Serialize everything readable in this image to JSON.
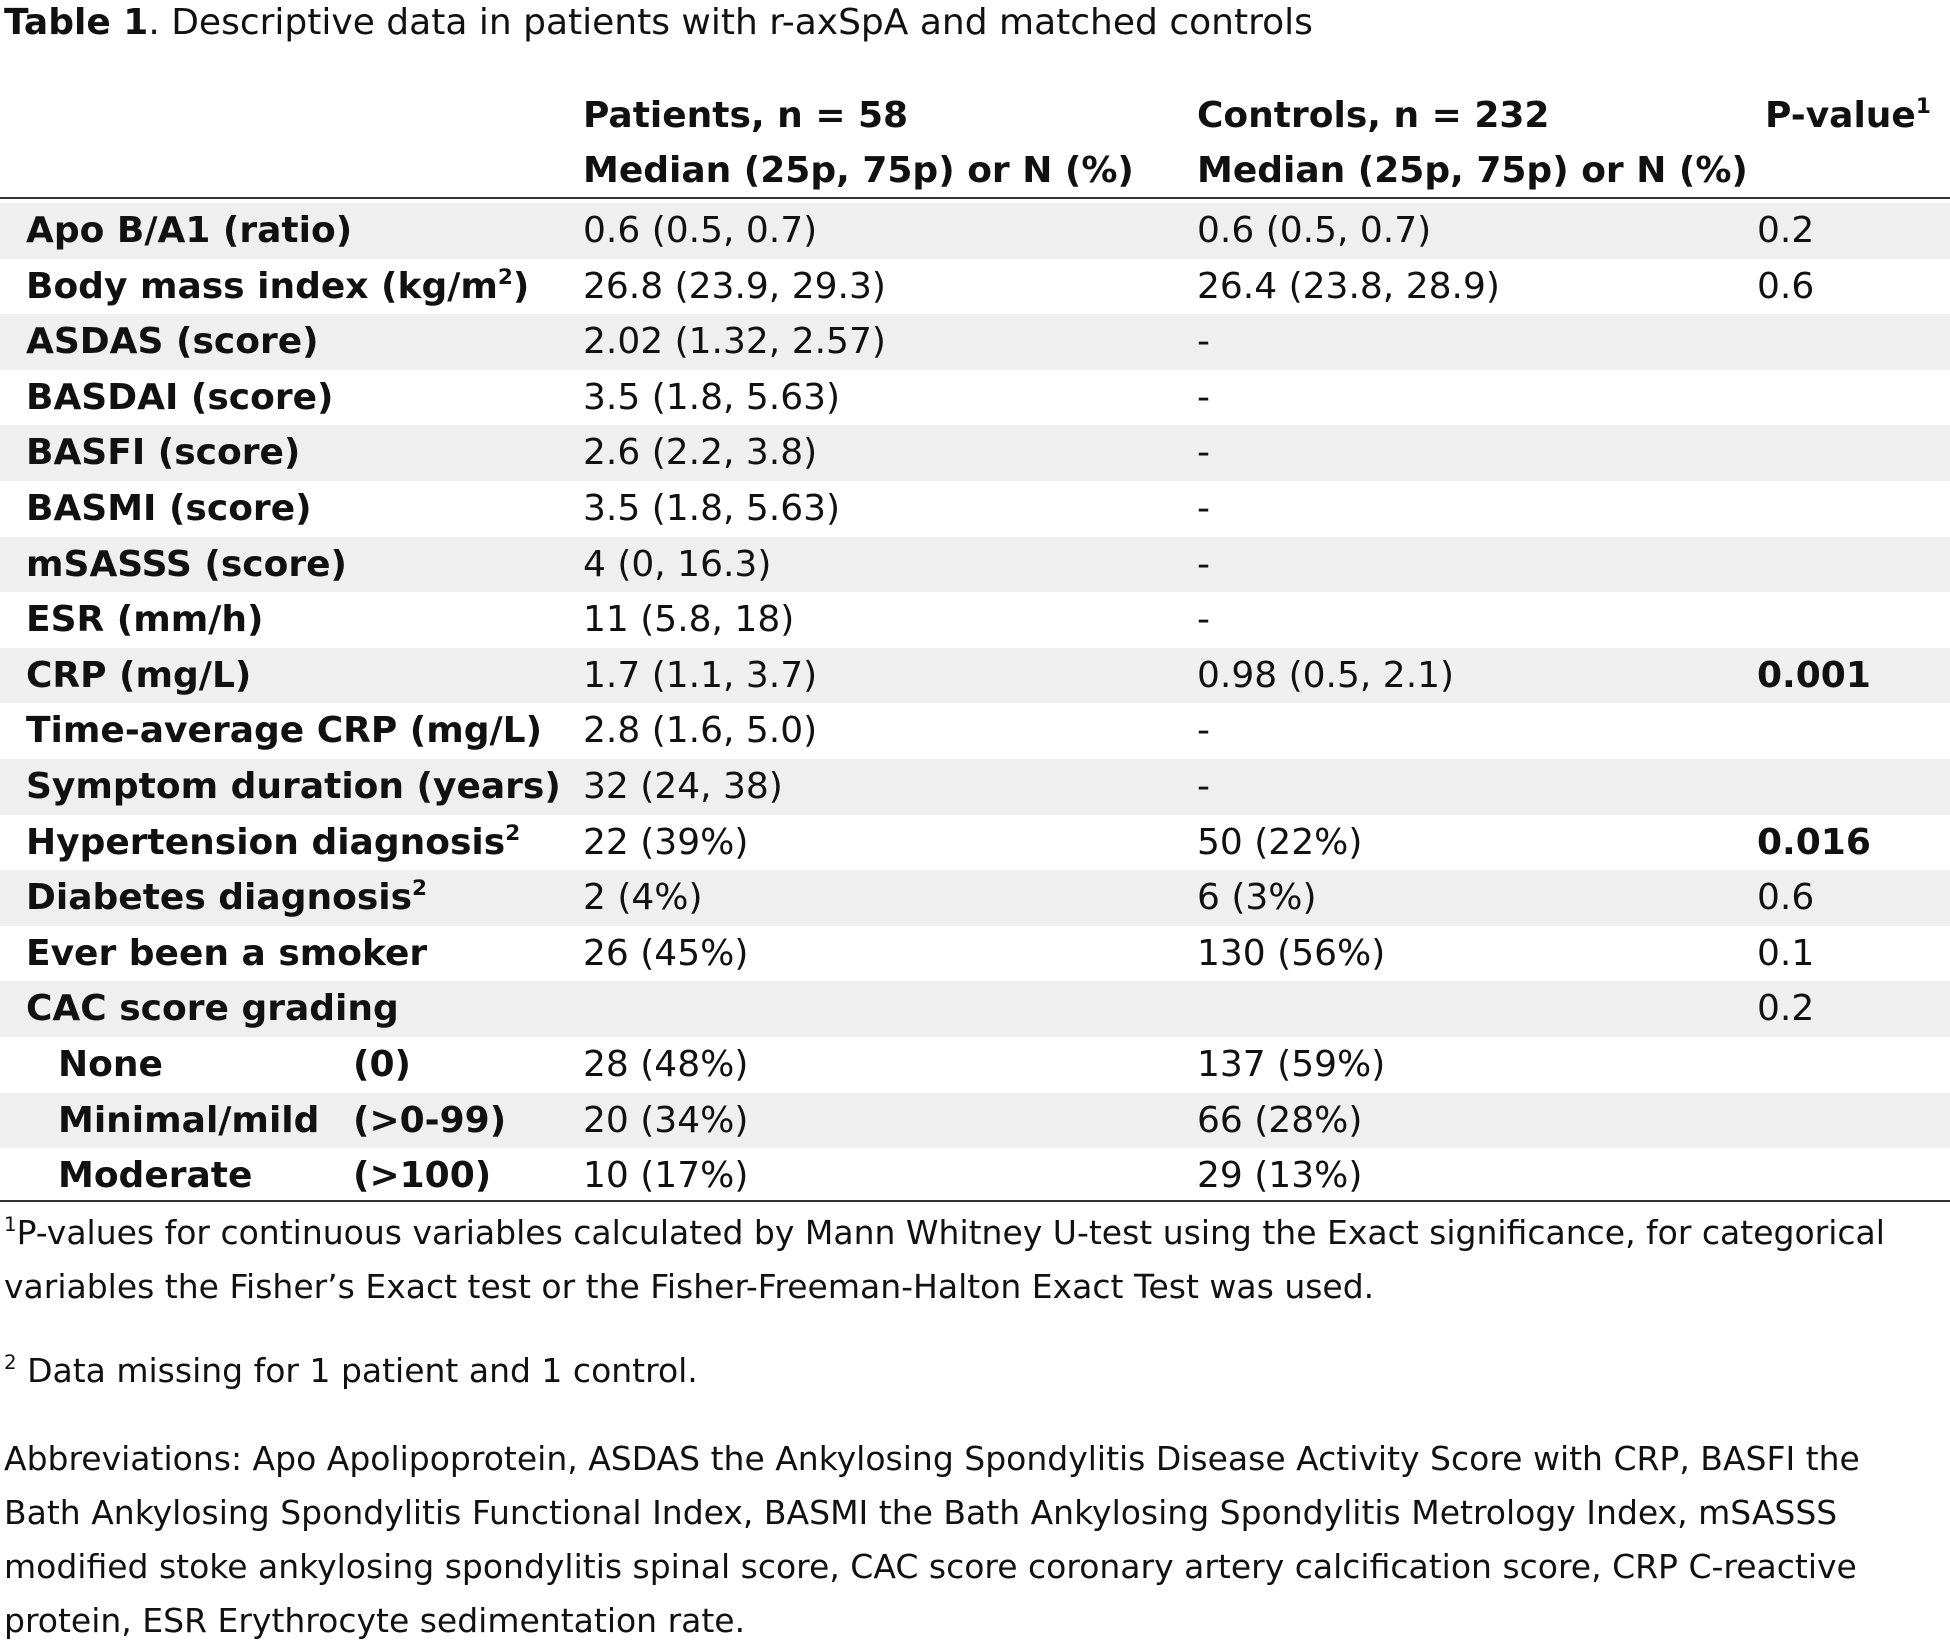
{
  "caption": {
    "label": "Table 1",
    "text": ". Descriptive data in patients with r-axSpA and matched controls"
  },
  "headers": {
    "patients_line1": "Patients, n = 58",
    "patients_line2": "Median (25p, 75p) or N (%)",
    "controls_line1": "Controls, n = 232",
    "controls_line2": "Median (25p, 75p) or N (%)",
    "pvalue": "P-value",
    "pvalue_sup": "1"
  },
  "rows": [
    {
      "label": "Apo B/A1 (ratio)",
      "sup": "",
      "paren": "",
      "patients": "0.6 (0.5, 0.7)",
      "controls": "0.6 (0.5, 0.7)",
      "pvalue": "0.2",
      "bold_p": false,
      "indent": false,
      "shade": true
    },
    {
      "label": "Body mass index (kg/m",
      "sup": "2",
      "after_sup": ")",
      "paren": "",
      "patients": "26.8 (23.9, 29.3)",
      "controls": "26.4 (23.8, 28.9)",
      "pvalue": "0.6",
      "bold_p": false,
      "indent": false,
      "shade": false
    },
    {
      "label": "ASDAS (score)",
      "sup": "",
      "paren": "",
      "patients": "2.02 (1.32, 2.57)",
      "controls": "-",
      "pvalue": "",
      "bold_p": false,
      "indent": false,
      "shade": true
    },
    {
      "label": "BASDAI (score)",
      "sup": "",
      "paren": "",
      "patients": "3.5 (1.8, 5.63)",
      "controls": "-",
      "pvalue": "",
      "bold_p": false,
      "indent": false,
      "shade": false
    },
    {
      "label": "BASFI (score)",
      "sup": "",
      "paren": "",
      "patients": "2.6 (2.2, 3.8)",
      "controls": "-",
      "pvalue": "",
      "bold_p": false,
      "indent": false,
      "shade": true
    },
    {
      "label": "BASMI (score)",
      "sup": "",
      "paren": "",
      "patients": "3.5 (1.8, 5.63)",
      "controls": "-",
      "pvalue": "",
      "bold_p": false,
      "indent": false,
      "shade": false
    },
    {
      "label": "mSASSS (score)",
      "sup": "",
      "paren": "",
      "patients": "4 (0, 16.3)",
      "controls": "-",
      "pvalue": "",
      "bold_p": false,
      "indent": false,
      "shade": true
    },
    {
      "label": "ESR (mm/h)",
      "sup": "",
      "paren": "",
      "patients": "11 (5.8, 18)",
      "controls": "-",
      "pvalue": "",
      "bold_p": false,
      "indent": false,
      "shade": false
    },
    {
      "label": "CRP (mg/L)",
      "sup": "",
      "paren": "",
      "patients": "1.7 (1.1, 3.7)",
      "controls": "0.98 (0.5, 2.1)",
      "pvalue": "0.001",
      "bold_p": true,
      "indent": false,
      "shade": true
    },
    {
      "label": "Time-average CRP (mg/L)",
      "sup": "",
      "paren": "",
      "patients": "2.8 (1.6, 5.0)",
      "controls": "-",
      "pvalue": "",
      "bold_p": false,
      "indent": false,
      "shade": false
    },
    {
      "label": "Symptom duration (years)",
      "sup": "",
      "paren": "",
      "patients": "32 (24, 38)",
      "controls": "-",
      "pvalue": "",
      "bold_p": false,
      "indent": false,
      "shade": true
    },
    {
      "label": "Hypertension diagnosis",
      "sup": "2",
      "paren": "",
      "patients": "22 (39%)",
      "controls": "50 (22%)",
      "pvalue": "0.016",
      "bold_p": true,
      "indent": false,
      "shade": false
    },
    {
      "label": "Diabetes diagnosis",
      "sup": "2",
      "paren": "",
      "patients": "2 (4%)",
      "controls": "6 (3%)",
      "pvalue": "0.6",
      "bold_p": false,
      "indent": false,
      "shade": true
    },
    {
      "label": "Ever been a smoker",
      "sup": "",
      "paren": "",
      "patients": "26 (45%)",
      "controls": "130 (56%)",
      "pvalue": "0.1",
      "bold_p": false,
      "indent": false,
      "shade": false
    },
    {
      "label": "CAC score grading",
      "sup": "",
      "paren": "",
      "patients": "",
      "controls": "",
      "pvalue": "0.2",
      "bold_p": false,
      "indent": false,
      "shade": true
    },
    {
      "label": "None",
      "sup": "",
      "paren": "(0)",
      "patients": "28 (48%)",
      "controls": "137 (59%)",
      "pvalue": "",
      "bold_p": false,
      "indent": true,
      "shade": false
    },
    {
      "label": "Minimal/mild",
      "sup": "",
      "paren": "(>0-99)",
      "patients": "20 (34%)",
      "controls": "66 (28%)",
      "pvalue": "",
      "bold_p": false,
      "indent": true,
      "shade": true
    },
    {
      "label": "Moderate",
      "sup": "",
      "paren": "(>100)",
      "patients": "10 (17%)",
      "controls": "29 (13%)",
      "pvalue": "",
      "bold_p": false,
      "indent": true,
      "shade": false
    }
  ],
  "footnotes": {
    "fn1_sup": "1",
    "fn1": "P-values for continuous variables calculated by Mann Whitney U-test using the Exact significance, for categorical variables the Fisher’s Exact test or the Fisher-Freeman-Halton Exact Test was used.",
    "fn2_sup": "2",
    "fn2": " Data missing for 1 patient and 1 control.",
    "abbreviations": "Abbreviations: Apo Apolipoprotein, ASDAS the Ankylosing Spondylitis Disease Activity Score with CRP, BASFI the Bath Ankylosing Spondylitis Functional Index, BASMI the Bath Ankylosing Spondylitis Metrology Index, mSASSS modified stoke ankylosing spondylitis spinal score, CAC score coronary artery calcification score, CRP C-reactive protein, ESR Erythrocyte sedimentation rate."
  }
}
